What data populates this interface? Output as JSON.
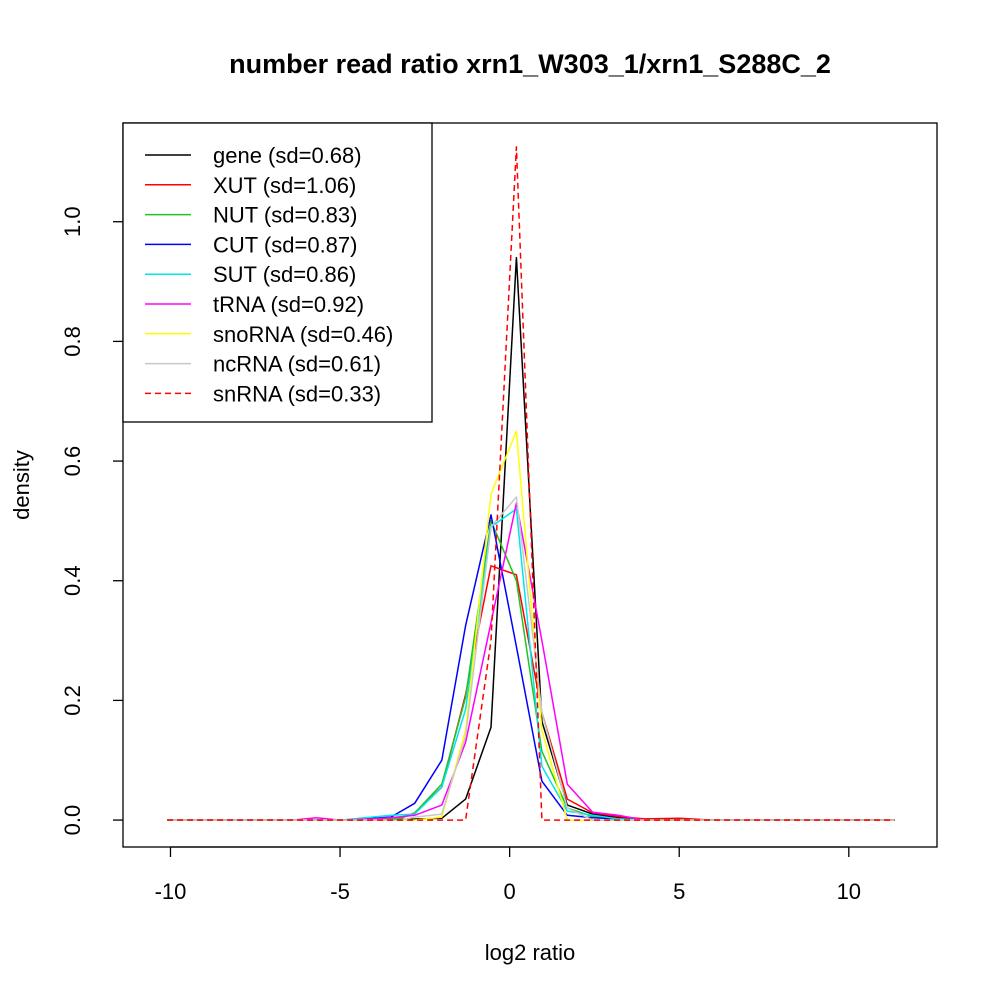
{
  "chart_data": {
    "type": "line",
    "title": "number read ratio xrn1_W303_1/xrn1_S288C_2",
    "xlabel": "log2 ratio",
    "ylabel": "density",
    "xlim": [
      -11.4,
      12.6
    ],
    "ylim": [
      -0.045,
      1.165
    ],
    "x_ticks": [
      -10,
      -5,
      0,
      5,
      10
    ],
    "x_tick_labels": [
      "-10",
      "-5",
      "0",
      "5",
      "10"
    ],
    "y_ticks": [
      0.0,
      0.2,
      0.4,
      0.6,
      0.8,
      1.0
    ],
    "y_tick_labels": [
      "0.0",
      "0.2",
      "0.4",
      "0.6",
      "0.8",
      "1.0"
    ],
    "grid": false,
    "legend_position": "top-left",
    "series": [
      {
        "name": "gene (sd=0.68)",
        "color": "#000000",
        "dash": "solid",
        "x": [
          -10.1,
          -7.0,
          -5.0,
          -4.0,
          -3.2,
          -2.0,
          -1.3,
          -0.55,
          0.2,
          0.95,
          1.7,
          2.45,
          3.2,
          4.0,
          6.0,
          11.35
        ],
        "y": [
          0.0,
          0.0,
          0.0,
          0.0,
          0.001,
          0.003,
          0.035,
          0.155,
          0.94,
          0.165,
          0.025,
          0.01,
          0.004,
          0.001,
          0.0,
          0.0
        ]
      },
      {
        "name": "XUT (sd=1.06)",
        "color": "#ff0000",
        "dash": "solid",
        "x": [
          -10.1,
          -7.0,
          -5.0,
          -3.2,
          -2.8,
          -2.0,
          -1.3,
          -0.55,
          0.2,
          0.95,
          1.7,
          2.45,
          3.2,
          4.0,
          5.0,
          6.0,
          11.35
        ],
        "y": [
          0.0,
          0.0,
          0.0,
          0.004,
          0.012,
          0.055,
          0.21,
          0.425,
          0.41,
          0.18,
          0.035,
          0.012,
          0.006,
          0.002,
          0.003,
          0.0,
          0.0
        ]
      },
      {
        "name": "NUT (sd=0.83)",
        "color": "#22c322",
        "dash": "solid",
        "x": [
          -10.1,
          -7.0,
          -5.0,
          -3.2,
          -2.8,
          -2.0,
          -1.3,
          -0.55,
          0.2,
          0.95,
          1.7,
          2.45,
          3.2,
          4.0,
          6.0,
          11.35
        ],
        "y": [
          0.0,
          0.0,
          0.0,
          0.003,
          0.012,
          0.06,
          0.205,
          0.5,
          0.4,
          0.115,
          0.02,
          0.006,
          0.002,
          0.0,
          0.0,
          0.0
        ]
      },
      {
        "name": "CUT (sd=0.87)",
        "color": "#0000ff",
        "dash": "solid",
        "x": [
          -10.1,
          -7.0,
          -5.0,
          -4.0,
          -3.5,
          -2.8,
          -2.0,
          -1.3,
          -0.55,
          0.2,
          0.95,
          1.7,
          2.45,
          3.2,
          4.0,
          6.0,
          11.35
        ],
        "y": [
          0.0,
          0.0,
          0.0,
          0.003,
          0.005,
          0.028,
          0.1,
          0.325,
          0.51,
          0.29,
          0.065,
          0.008,
          0.004,
          0.002,
          0.0,
          0.0,
          0.0
        ]
      },
      {
        "name": "SUT (sd=0.86)",
        "color": "#00e5ee",
        "dash": "solid",
        "x": [
          -10.1,
          -7.0,
          -5.0,
          -3.5,
          -2.8,
          -2.0,
          -1.3,
          -0.55,
          0.2,
          0.95,
          1.7,
          2.45,
          3.2,
          4.0,
          6.0,
          11.35
        ],
        "y": [
          0.0,
          0.0,
          0.0,
          0.008,
          0.01,
          0.055,
          0.185,
          0.49,
          0.52,
          0.09,
          0.015,
          0.008,
          0.002,
          0.0,
          0.0,
          0.0
        ]
      },
      {
        "name": "tRNA (sd=0.92)",
        "color": "#ff00ff",
        "dash": "solid",
        "x": [
          -10.1,
          -6.4,
          -5.7,
          -5.0,
          -4.0,
          -3.5,
          -2.8,
          -2.0,
          -1.3,
          -0.55,
          0.2,
          0.95,
          1.7,
          2.45,
          3.2,
          4.0,
          6.0,
          11.35
        ],
        "y": [
          0.0,
          0.0,
          0.004,
          0.0,
          0.002,
          0.004,
          0.008,
          0.025,
          0.13,
          0.33,
          0.53,
          0.3,
          0.06,
          0.013,
          0.008,
          0.0,
          0.0,
          0.0
        ]
      },
      {
        "name": "snoRNA (sd=0.46)",
        "color": "#ffff00",
        "dash": "solid",
        "x": [
          -10.1,
          -7.0,
          -5.0,
          -2.8,
          -2.0,
          -1.3,
          -0.55,
          0.2,
          0.95,
          1.7,
          2.45,
          4.0,
          11.35
        ],
        "y": [
          0.0,
          0.0,
          0.0,
          0.0,
          0.005,
          0.15,
          0.545,
          0.65,
          0.15,
          0.0,
          0.0,
          0.0,
          0.0
        ]
      },
      {
        "name": "ncRNA (sd=0.61)",
        "color": "#c8c8c8",
        "dash": "solid",
        "x": [
          -10.1,
          -7.0,
          -5.0,
          -3.2,
          -2.8,
          -2.0,
          -1.3,
          -0.55,
          0.2,
          0.95,
          1.7,
          2.45,
          4.0,
          11.35
        ],
        "y": [
          0.0,
          0.0,
          0.0,
          0.0,
          0.005,
          0.01,
          0.14,
          0.49,
          0.54,
          0.18,
          0.02,
          0.0,
          0.0,
          0.0
        ]
      },
      {
        "name": "snRNA (sd=0.33)",
        "color": "#ff0000",
        "dash": "dashed",
        "x": [
          -10.1,
          -7.0,
          -5.0,
          -3.0,
          -1.3,
          -0.55,
          0.2,
          0.95,
          1.7,
          2.45,
          4.0,
          11.35
        ],
        "y": [
          0.0,
          0.0,
          0.0,
          0.0,
          0.0,
          0.3,
          1.125,
          0.0,
          0.0,
          0.0,
          0.0,
          0.0
        ]
      }
    ]
  }
}
